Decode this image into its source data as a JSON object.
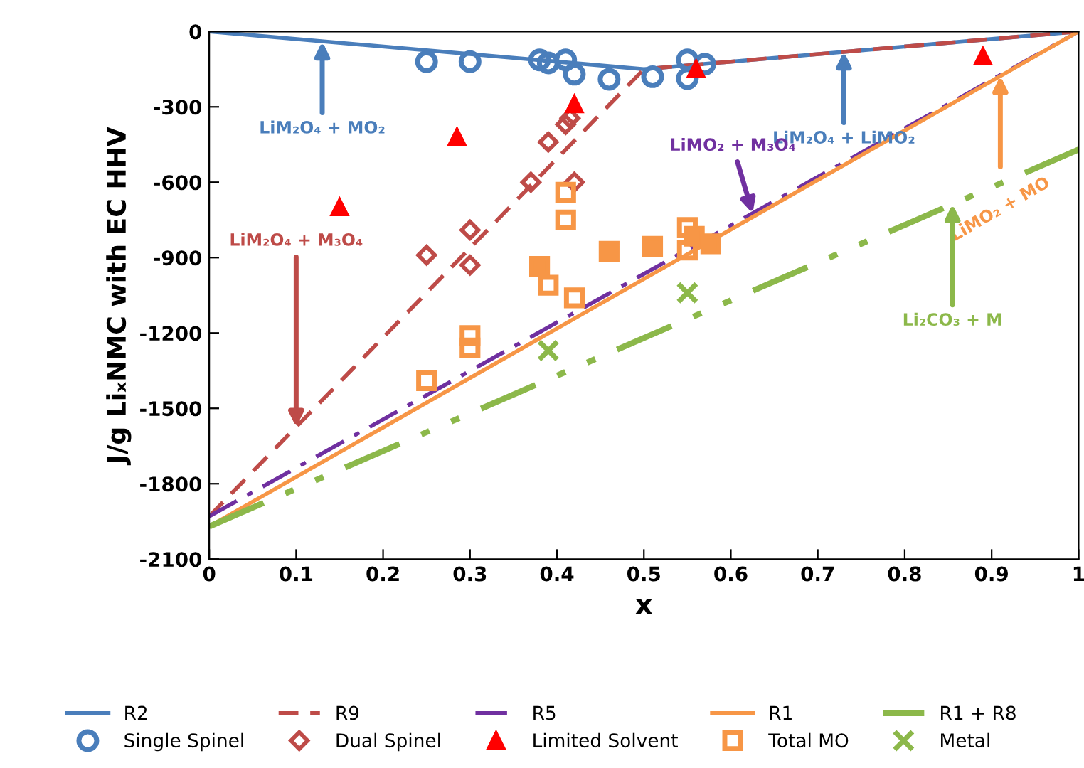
{
  "chart_data": {
    "type": "scatter",
    "ylabel": "J/g LiₓNMC with EC HHV",
    "xlabel": "x",
    "xlim": [
      0,
      1
    ],
    "ylim": [
      -2100,
      0
    ],
    "xticks": [
      0,
      0.1,
      0.2,
      0.3,
      0.4,
      0.5,
      0.6,
      0.7,
      0.8,
      0.9,
      1
    ],
    "yticks": [
      0,
      -300,
      -600,
      -900,
      -1200,
      -1500,
      -1800,
      -2100
    ],
    "grid": false,
    "legend": "bottom",
    "series": [
      {
        "name": "R2",
        "type": "line",
        "color": "#4a7ebb",
        "line_style": "solid",
        "marker": "none",
        "x": [
          0,
          0.5,
          1
        ],
        "values": [
          0,
          -150,
          0
        ]
      },
      {
        "name": "R9",
        "type": "line",
        "color": "#be4b48",
        "line_style": "dashed",
        "marker": "none",
        "x": [
          0,
          0.5,
          1
        ],
        "values": [
          -1930,
          -150,
          0
        ]
      },
      {
        "name": "R5",
        "type": "line",
        "color": "#7030a0",
        "line_style": "dashdot",
        "marker": "none",
        "x": [
          0,
          1
        ],
        "values": [
          -1930,
          0
        ]
      },
      {
        "name": "R1",
        "type": "line",
        "color": "#f79646",
        "line_style": "solid",
        "marker": "none",
        "x": [
          0,
          1
        ],
        "values": [
          -1970,
          0
        ]
      },
      {
        "name": "R1 + R8",
        "type": "line",
        "color": "#8cb84a",
        "line_style": "dashdotdot",
        "marker": "none",
        "x": [
          0,
          1
        ],
        "values": [
          -1970,
          -470
        ]
      },
      {
        "name": "Single Spinel",
        "color": "#4a7ebb",
        "marker": "circle",
        "x": [
          0.25,
          0.3,
          0.38,
          0.39,
          0.41,
          0.42,
          0.46,
          0.51,
          0.55,
          0.55,
          0.57
        ],
        "values": [
          -120,
          -120,
          -113,
          -125,
          -113,
          -170,
          -190,
          -180,
          -113,
          -187,
          -130
        ]
      },
      {
        "name": "Dual Spinel",
        "color": "#be4b48",
        "marker": "diamond",
        "x": [
          0.25,
          0.3,
          0.3,
          0.37,
          0.39,
          0.41,
          0.415,
          0.42
        ],
        "values": [
          -890,
          -790,
          -930,
          -600,
          -440,
          -370,
          -345,
          -600
        ]
      },
      {
        "name": "Limited Solvent",
        "color": "#ff0000",
        "marker": "triangle",
        "x": [
          0.15,
          0.285,
          0.42,
          0.56,
          0.89
        ],
        "values": [
          -700,
          -420,
          -290,
          -150,
          -100
        ]
      },
      {
        "name": "Total MO",
        "color": "#f79646",
        "marker": "square",
        "x": [
          0.41,
          0.41,
          0.39,
          0.42,
          0.55,
          0.55,
          0.25,
          0.3,
          0.3
        ],
        "values": [
          -640,
          -750,
          -1010,
          -1060,
          -780,
          -870,
          -1390,
          -1210,
          -1260
        ]
      },
      {
        "color": "#f79646",
        "marker": "square",
        "x": [
          0.38,
          0.46,
          0.51,
          0.558,
          0.577
        ],
        "values": [
          -935,
          -875,
          -855,
          -815,
          -845
        ]
      },
      {
        "name": "Metal",
        "color": "#8cb84a",
        "marker": "cross",
        "x": [
          0.55,
          0.39
        ],
        "values": [
          -1040,
          -1270
        ]
      }
    ],
    "annotations": [
      {
        "text": "LiM₂O₄ + MO₂",
        "x": 0.13,
        "y": -40
      },
      {
        "text": "LiM₂O₄ + LiMO₂",
        "x": 0.73,
        "y": -80
      },
      {
        "text": "LiMO₂ + M₃O₄",
        "x": 0.625,
        "y": -724
      },
      {
        "text": "LiMO₂ + MO",
        "x": 0.91,
        "y": -177
      },
      {
        "text": "Li₂CO₃ + M",
        "x": 0.855,
        "y": -687
      },
      {
        "text": "LiM₂O₄ + M₃O₄",
        "x": 0.1,
        "y": -1574
      }
    ]
  }
}
